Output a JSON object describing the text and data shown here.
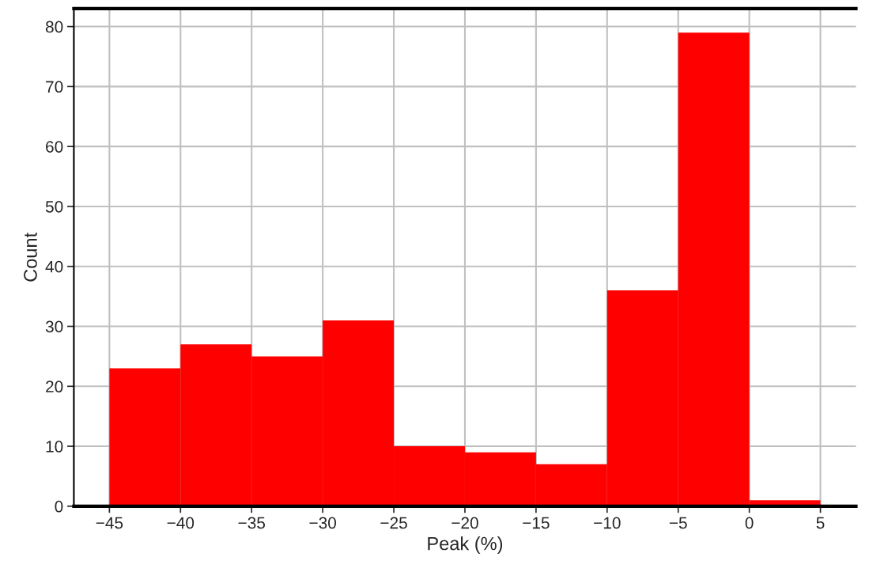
{
  "chart_data": {
    "type": "histogram",
    "xlabel": "Peak (%)",
    "ylabel": "Count",
    "bins": [
      -45,
      -40,
      -35,
      -30,
      -25,
      -20,
      -15,
      -10,
      -5,
      0,
      5
    ],
    "values": [
      23,
      27,
      25,
      31,
      10,
      9,
      7,
      36,
      79,
      1
    ],
    "color": "#ff0000",
    "xlim": [
      -47.5,
      7.5
    ],
    "ylim": [
      0,
      83
    ],
    "xticks": [
      -45,
      -40,
      -35,
      -30,
      -25,
      -20,
      -15,
      -10,
      -5,
      0,
      5
    ],
    "yticks": [
      0,
      10,
      20,
      30,
      40,
      50,
      60,
      70,
      80
    ],
    "grid": true,
    "legend": false
  }
}
